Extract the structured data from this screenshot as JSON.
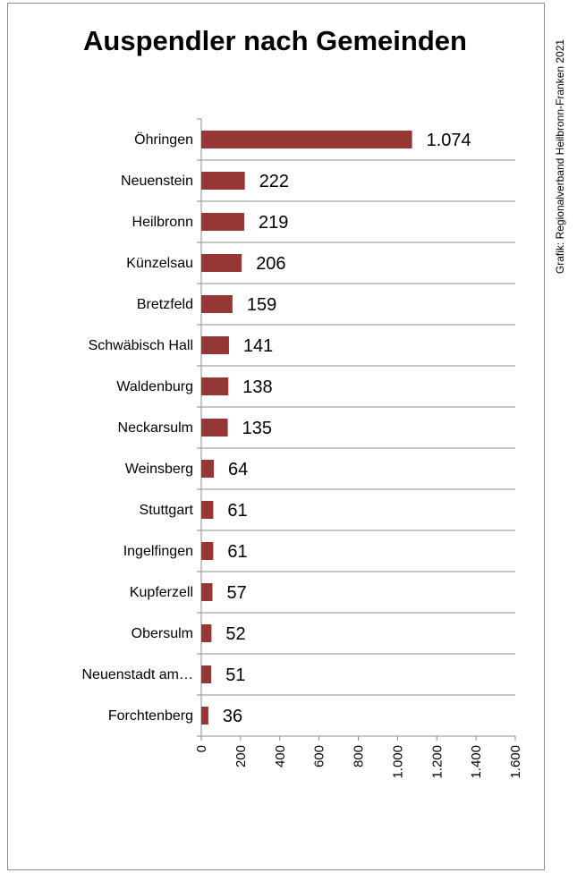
{
  "title": "Auspendler nach Gemeinden",
  "credit": "Grafik: Regionalverband Heilbronn-Franken 2021",
  "colors": {
    "bar": "#953735",
    "grid": "#8c8c8c"
  },
  "chart_data": {
    "type": "bar",
    "orientation": "horizontal",
    "title": "Auspendler nach Gemeinden",
    "categories": [
      "Öhringen",
      "Neuenstein",
      "Heilbronn",
      "Künzelsau",
      "Bretzfeld",
      "Schwäbisch Hall",
      "Waldenburg",
      "Neckarsulm",
      "Weinsberg",
      "Stuttgart",
      "Ingelfingen",
      "Kupferzell",
      "Obersulm",
      "Neuenstadt am…",
      "Forchtenberg"
    ],
    "values": [
      1074,
      222,
      219,
      206,
      159,
      141,
      138,
      135,
      64,
      61,
      61,
      57,
      52,
      51,
      36
    ],
    "value_labels": [
      "1.074",
      "222",
      "219",
      "206",
      "159",
      "141",
      "138",
      "135",
      "64",
      "61",
      "61",
      "57",
      "52",
      "51",
      "36"
    ],
    "xlim": [
      0,
      1600
    ],
    "ticks": [
      0,
      200,
      400,
      600,
      800,
      1000,
      1200,
      1400,
      1600
    ],
    "tick_labels": [
      "0",
      "200",
      "400",
      "600",
      "800",
      "1.000",
      "1.200",
      "1.400",
      "1.600"
    ],
    "grid": true
  }
}
